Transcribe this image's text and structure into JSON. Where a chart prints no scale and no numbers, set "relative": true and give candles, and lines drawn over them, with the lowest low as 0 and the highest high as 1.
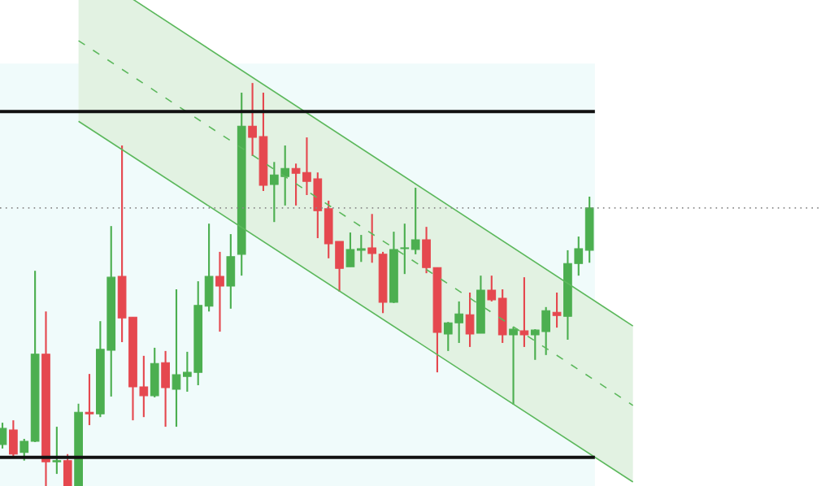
{
  "chart_data": {
    "type": "candlestick",
    "relative": true,
    "categories": [
      null,
      null,
      null,
      null,
      null,
      null,
      null,
      null,
      null,
      null,
      null,
      null,
      null,
      null,
      null,
      null,
      null,
      null,
      null,
      null,
      null,
      null,
      null,
      null,
      null,
      null,
      null,
      null,
      null,
      null,
      null,
      null,
      null,
      null,
      null,
      null,
      null,
      null,
      null,
      null,
      null,
      null,
      null,
      null,
      null,
      null,
      null,
      null,
      null,
      null,
      null,
      null,
      null,
      null,
      null,
      null,
      null,
      null,
      null
    ],
    "series": [
      {
        "ohlc": [
          [
            0.103,
            0.157,
            0.093,
            0.143
          ],
          [
            0.139,
            0.163,
            0.073,
            0.079
          ],
          [
            0.083,
            0.117,
            0.063,
            0.111
          ],
          [
            0.111,
            0.534,
            0.109,
            0.327
          ],
          [
            0.327,
            0.433,
            0,
            0.06
          ],
          [
            0.06,
            0.147,
            0.03,
            0.063
          ],
          [
            0.063,
            0.079,
            0,
            0
          ],
          [
            0,
            0.204,
            0,
            0.183
          ],
          [
            0.183,
            0.278,
            0.151,
            0.179
          ],
          [
            0.179,
            0.409,
            0.171,
            0.339
          ],
          [
            0.337,
            0.645,
            0.222,
            0.518
          ],
          [
            0.52,
            0.845,
            0.357,
            0.417
          ],
          [
            0.419,
            0.419,
            0.163,
            0.246
          ],
          [
            0.246,
            0.323,
            0.171,
            0.224
          ],
          [
            0.224,
            0.343,
            0.22,
            0.304
          ],
          [
            0.306,
            0.335,
            0.147,
            0.244
          ],
          [
            0.24,
            0.488,
            0.147,
            0.276
          ],
          [
            0.272,
            0.333,
            0.234,
            0.282
          ],
          [
            0.282,
            0.508,
            0.25,
            0.448
          ],
          [
            0.446,
            0.651,
            0.433,
            0.52
          ],
          [
            0.52,
            0.581,
            0.383,
            0.496
          ],
          [
            0.496,
            0.625,
            0.44,
            0.569
          ],
          [
            0.575,
            0.976,
            0.522,
            0.893
          ],
          [
            0.893,
            1,
            0.819,
            0.865
          ],
          [
            0.867,
            0.976,
            0.732,
            0.746
          ],
          [
            0.748,
            0.804,
            0.655,
            0.772
          ],
          [
            0.768,
            0.845,
            0.696,
            0.788
          ],
          [
            0.788,
            0.8,
            0.696,
            0.776
          ],
          [
            0.778,
            0.865,
            0.722,
            0.756
          ],
          [
            0.762,
            0.778,
            0.615,
            0.683
          ],
          [
            0.688,
            0.708,
            0.565,
            0.601
          ],
          [
            0.607,
            0.607,
            0.482,
            0.54
          ],
          [
            0.544,
            0.629,
            0.544,
            0.587
          ],
          [
            0.585,
            0.623,
            0.556,
            0.589
          ],
          [
            0.591,
            0.675,
            0.554,
            0.577
          ],
          [
            0.575,
            0.581,
            0.429,
            0.456
          ],
          [
            0.456,
            0.631,
            0.454,
            0.587
          ],
          [
            0.589,
            0.651,
            0.526,
            0.591
          ],
          [
            0.587,
            0.74,
            0.575,
            0.611
          ],
          [
            0.611,
            0.643,
            0.528,
            0.542
          ],
          [
            0.542,
            0.542,
            0.282,
            0.381
          ],
          [
            0.377,
            0.407,
            0.335,
            0.405
          ],
          [
            0.405,
            0.458,
            0.355,
            0.427
          ],
          [
            0.425,
            0.48,
            0.345,
            0.377
          ],
          [
            0.379,
            0.522,
            0.379,
            0.486
          ],
          [
            0.486,
            0.522,
            0.458,
            0.462
          ],
          [
            0.466,
            0.488,
            0.355,
            0.375
          ],
          [
            0.375,
            0.395,
            0.202,
            0.389
          ],
          [
            0.385,
            0.518,
            0.345,
            0.375
          ],
          [
            0.375,
            0.389,
            0.313,
            0.387
          ],
          [
            0.383,
            0.444,
            0.325,
            0.435
          ],
          [
            0.431,
            0.48,
            0.393,
            0.423
          ],
          [
            0.421,
            0.585,
            0.363,
            0.552
          ],
          [
            0.552,
            0.619,
            0.522,
            0.589
          ],
          [
            0.585,
            0.718,
            0.554,
            0.69
          ],
          null,
          null,
          null,
          null
        ],
        "colors": [
          "#4caf50",
          "#e5484f",
          "#4caf50",
          "#4caf50",
          "#e5484f",
          "#4caf50",
          "#e5484f",
          "#4caf50",
          "#e5484f",
          "#4caf50",
          "#4caf50",
          "#e5484f",
          "#e5484f",
          "#e5484f",
          "#4caf50",
          "#e5484f",
          "#4caf50",
          "#4caf50",
          "#4caf50",
          "#4caf50",
          "#e5484f",
          "#4caf50",
          "#4caf50",
          "#e5484f",
          "#e5484f",
          "#4caf50",
          "#4caf50",
          "#e5484f",
          "#e5484f",
          "#e5484f",
          "#e5484f",
          "#e5484f",
          "#4caf50",
          "#4caf50",
          "#e5484f",
          "#e5484f",
          "#4caf50",
          "#4caf50",
          "#4caf50",
          "#e5484f",
          "#e5484f",
          "#4caf50",
          "#4caf50",
          "#e5484f",
          "#4caf50",
          "#e5484f",
          "#e5484f",
          "#4caf50",
          "#e5484f",
          "#4caf50",
          "#4caf50",
          "#e5484f",
          "#4caf50",
          "#4caf50",
          "#4caf50",
          null,
          null,
          null,
          null
        ]
      },
      {
        "type": "line",
        "color": "#5cb85c",
        "line_style": "dashed",
        "values": [
          null,
          null,
          null,
          null,
          null,
          null,
          null,
          1.105,
          null,
          null,
          null,
          null,
          null,
          null,
          null,
          null,
          null,
          null,
          null,
          null,
          null,
          null,
          null,
          null,
          null,
          null,
          null,
          null,
          null,
          null,
          null,
          null,
          null,
          null,
          null,
          null,
          null,
          null,
          null,
          null,
          null,
          null,
          null,
          null,
          null,
          null,
          null,
          null,
          null,
          null,
          null,
          null,
          null,
          null,
          null,
          null,
          null,
          null,
          0.2
        ],
        "lower": [
          null,
          null,
          null,
          null,
          null,
          null,
          null,
          0.905,
          null,
          null,
          null,
          null,
          null,
          null,
          null,
          null,
          null,
          null,
          null,
          null,
          null,
          null,
          null,
          null,
          null,
          null,
          null,
          null,
          null,
          null,
          null,
          null,
          null,
          null,
          null,
          null,
          null,
          null,
          null,
          null,
          null,
          null,
          null,
          null,
          null,
          null,
          null,
          null,
          null,
          null,
          null,
          null,
          null,
          null,
          null,
          null,
          null,
          null,
          0.01
        ],
        "upper": [
          null,
          null,
          null,
          null,
          null,
          null,
          null,
          1.296,
          null,
          null,
          null,
          null,
          null,
          null,
          null,
          null,
          null,
          null,
          null,
          null,
          null,
          null,
          null,
          null,
          null,
          null,
          null,
          null,
          null,
          null,
          null,
          null,
          null,
          null,
          null,
          null,
          null,
          null,
          null,
          null,
          null,
          null,
          null,
          null,
          null,
          null,
          null,
          null,
          null,
          null,
          null,
          null,
          null,
          null,
          null,
          null,
          null,
          null,
          0.397
        ]
      },
      {
        "type": "line",
        "color": "#5cb85c",
        "line_style": "solid",
        "values": [
          null,
          null,
          null,
          null,
          null,
          null,
          null,
          1.296,
          null,
          null,
          null,
          null,
          null,
          null,
          null,
          null,
          null,
          null,
          null,
          null,
          null,
          null,
          null,
          null,
          null,
          null,
          null,
          null,
          null,
          null,
          null,
          null,
          null,
          null,
          null,
          null,
          null,
          null,
          null,
          null,
          null,
          null,
          null,
          null,
          null,
          null,
          null,
          null,
          null,
          null,
          null,
          null,
          null,
          null,
          null,
          null,
          null,
          null,
          0.397
        ]
      },
      {
        "type": "line",
        "color": "#5cb85c",
        "line_style": "solid",
        "values": [
          null,
          null,
          null,
          null,
          null,
          null,
          null,
          0.905,
          null,
          null,
          null,
          null,
          null,
          null,
          null,
          null,
          null,
          null,
          null,
          null,
          null,
          null,
          null,
          null,
          null,
          null,
          null,
          null,
          null,
          null,
          null,
          null,
          null,
          null,
          null,
          null,
          null,
          null,
          null,
          null,
          null,
          null,
          null,
          null,
          null,
          null,
          null,
          null,
          null,
          null,
          null,
          null,
          null,
          null,
          null,
          null,
          null,
          null,
          0.01
        ]
      }
    ],
    "ref_lines": [
      {
        "axis": "y",
        "value": 0.929,
        "color": "#111111"
      },
      {
        "axis": "y",
        "value": 0.071,
        "color": "#111111"
      },
      {
        "axis": "y",
        "value": 0.69,
        "color": "#888888",
        "line_style": "dotted"
      }
    ]
  }
}
